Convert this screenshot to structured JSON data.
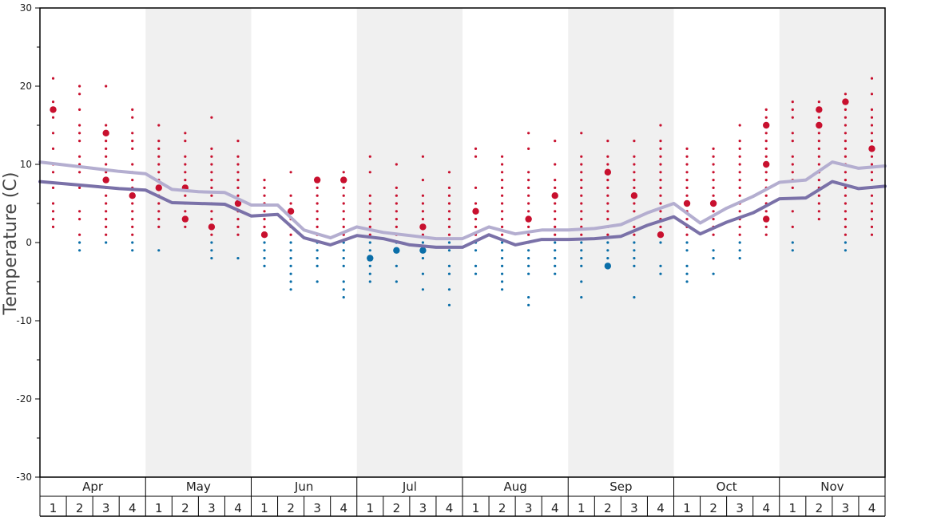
{
  "chart_data": {
    "type": "scatter",
    "title": "",
    "ylabel": "Temperature (C)",
    "xlabel": "",
    "ylim": [
      -30,
      30
    ],
    "y_ticks": [
      30,
      20,
      10,
      0,
      -10,
      -20,
      -30
    ],
    "months": [
      "Apr",
      "May",
      "Jun",
      "Jul",
      "Aug",
      "Sep",
      "Oct",
      "Nov"
    ],
    "week_labels": [
      "1",
      "2",
      "3",
      "4"
    ],
    "shaded_months": [
      "May",
      "Jul",
      "Sep",
      "Nov"
    ],
    "colors": {
      "warm_dot": "#c8102e",
      "cold_dot": "#0a6ea8",
      "mean_line_upper": "#b4aed0",
      "mean_line_lower": "#7a71a8",
      "month_shade": "#f0f0f0"
    },
    "series": [
      {
        "values": [
          10.3,
          9.9,
          9.5,
          9.1,
          8.8,
          6.8,
          6.5,
          6.4,
          4.8,
          4.8,
          1.6,
          0.6,
          2.0,
          1.3,
          0.9,
          0.5,
          0.5,
          2.0,
          1.1,
          1.6,
          1.6,
          1.8,
          2.3,
          3.8,
          5.0,
          2.5,
          4.4,
          5.9,
          7.7,
          8.0,
          10.3,
          9.5,
          9.8
        ]
      },
      {
        "values": [
          7.8,
          7.5,
          7.2,
          6.9,
          6.7,
          5.1,
          5.0,
          4.9,
          3.4,
          3.6,
          0.6,
          -0.3,
          0.9,
          0.5,
          -0.3,
          -0.6,
          -0.6,
          1.0,
          -0.3,
          0.4,
          0.4,
          0.5,
          0.8,
          2.2,
          3.3,
          1.1,
          2.6,
          3.8,
          5.6,
          5.7,
          7.8,
          6.9,
          7.2
        ]
      }
    ],
    "points": [
      {
        "week": 0,
        "temps": [
          21,
          18,
          17,
          16,
          14,
          12,
          10,
          9,
          7,
          5,
          4,
          3,
          2
        ],
        "big": [
          17
        ]
      },
      {
        "week": 1,
        "temps": [
          20,
          19,
          17,
          15,
          14,
          13,
          11,
          10,
          9,
          7,
          4,
          3,
          1,
          0,
          -1
        ],
        "big": []
      },
      {
        "week": 2,
        "temps": [
          20,
          15,
          14,
          13,
          12,
          11,
          10,
          9,
          8,
          7,
          6,
          5,
          4,
          3,
          2,
          1,
          0
        ],
        "big": [
          14,
          8
        ]
      },
      {
        "week": 3,
        "temps": [
          17,
          16,
          14,
          13,
          12,
          10,
          9,
          8,
          7,
          6,
          5,
          4,
          3,
          2,
          1,
          0,
          -1
        ],
        "big": [
          6
        ]
      },
      {
        "week": 4,
        "temps": [
          15,
          13,
          12,
          11,
          10,
          9,
          8,
          7,
          6,
          5,
          4,
          3,
          2,
          -1
        ],
        "big": [
          7
        ]
      },
      {
        "week": 5,
        "temps": [
          14,
          13,
          11,
          10,
          9,
          8,
          7,
          6,
          5,
          4,
          3,
          2
        ],
        "big": [
          7,
          3
        ]
      },
      {
        "week": 6,
        "temps": [
          16,
          12,
          11,
          10,
          9,
          8,
          7,
          6,
          5,
          4,
          3,
          2,
          1,
          0,
          -1,
          -2
        ],
        "big": [
          2
        ]
      },
      {
        "week": 7,
        "temps": [
          13,
          11,
          10,
          9,
          8,
          7,
          6,
          5,
          4,
          3,
          2,
          1,
          -2
        ],
        "big": [
          5
        ]
      },
      {
        "week": 8,
        "temps": [
          8,
          7,
          6,
          5,
          4,
          3,
          2,
          1,
          0,
          -1,
          -2,
          -3
        ],
        "big": [
          1
        ]
      },
      {
        "week": 9,
        "temps": [
          9,
          6,
          5,
          4,
          3,
          2,
          1,
          0,
          -1,
          -2,
          -3,
          -4,
          -5,
          -6
        ],
        "big": [
          4
        ]
      },
      {
        "week": 10,
        "temps": [
          8,
          7,
          6,
          5,
          4,
          3,
          2,
          1,
          0,
          -1,
          -2,
          -3,
          -5
        ],
        "big": [
          8
        ]
      },
      {
        "week": 11,
        "temps": [
          9,
          8,
          7,
          6,
          5,
          4,
          3,
          2,
          1,
          0,
          -1,
          -2,
          -3,
          -5,
          -6,
          -7
        ],
        "big": [
          8
        ]
      },
      {
        "week": 12,
        "temps": [
          11,
          9,
          6,
          5,
          4,
          3,
          2,
          1,
          0,
          -1,
          -2,
          -3,
          -4,
          -5
        ],
        "big": [
          -2
        ]
      },
      {
        "week": 13,
        "temps": [
          10,
          7,
          6,
          5,
          4,
          3,
          2,
          1,
          0,
          -1,
          -3,
          -5
        ],
        "big": [
          -1
        ]
      },
      {
        "week": 14,
        "temps": [
          11,
          8,
          6,
          5,
          4,
          3,
          2,
          1,
          0,
          -1,
          -2,
          -4,
          -6
        ],
        "big": [
          2,
          -1
        ]
      },
      {
        "week": 15,
        "temps": [
          9,
          7,
          6,
          5,
          4,
          3,
          2,
          1,
          0,
          -1,
          -3,
          -4,
          -6,
          -8
        ],
        "big": []
      },
      {
        "week": 16,
        "temps": [
          12,
          11,
          7,
          5,
          4,
          3,
          2,
          1,
          0,
          -1,
          -3,
          -4
        ],
        "big": [
          4
        ]
      },
      {
        "week": 17,
        "temps": [
          11,
          10,
          9,
          8,
          7,
          6,
          5,
          4,
          3,
          2,
          1,
          0,
          -1,
          -2,
          -3,
          -4,
          -5,
          -6
        ],
        "big": []
      },
      {
        "week": 18,
        "temps": [
          14,
          12,
          9,
          8,
          7,
          6,
          5,
          4,
          3,
          2,
          1,
          0,
          -1,
          -2,
          -3,
          -4,
          -7,
          -8
        ],
        "big": [
          3
        ]
      },
      {
        "week": 19,
        "temps": [
          13,
          10,
          8,
          7,
          6,
          5,
          4,
          3,
          2,
          1,
          0,
          -1,
          -2,
          -3,
          -4
        ],
        "big": [
          6
        ]
      },
      {
        "week": 20,
        "temps": [
          14,
          11,
          10,
          9,
          8,
          7,
          6,
          5,
          4,
          3,
          2,
          1,
          0,
          -1,
          -2,
          -3,
          -5,
          -7
        ],
        "big": []
      },
      {
        "week": 21,
        "temps": [
          13,
          11,
          10,
          9,
          8,
          7,
          6,
          5,
          4,
          3,
          2,
          1,
          0,
          -1,
          -2,
          -3
        ],
        "big": [
          9,
          -3
        ]
      },
      {
        "week": 22,
        "temps": [
          13,
          11,
          10,
          9,
          8,
          7,
          6,
          5,
          4,
          3,
          2,
          1,
          0,
          -1,
          -2,
          -3,
          -7
        ],
        "big": [
          6
        ]
      },
      {
        "week": 23,
        "temps": [
          15,
          13,
          12,
          11,
          10,
          9,
          8,
          7,
          6,
          5,
          4,
          3,
          2,
          1,
          0,
          -3,
          -4
        ],
        "big": [
          1
        ]
      },
      {
        "week": 24,
        "temps": [
          12,
          11,
          10,
          9,
          8,
          7,
          6,
          5,
          4,
          3,
          2,
          1,
          0,
          -1,
          -3,
          -4,
          -5
        ],
        "big": [
          5
        ]
      },
      {
        "week": 25,
        "temps": [
          12,
          11,
          10,
          9,
          8,
          7,
          6,
          5,
          4,
          3,
          2,
          1,
          -1,
          -2,
          -4
        ],
        "big": [
          5
        ]
      },
      {
        "week": 26,
        "temps": [
          15,
          13,
          12,
          11,
          10,
          9,
          8,
          7,
          6,
          5,
          4,
          3,
          2,
          1,
          0,
          -1,
          -2
        ],
        "big": []
      },
      {
        "week": 27,
        "temps": [
          17,
          16,
          15,
          14,
          13,
          12,
          11,
          10,
          9,
          8,
          7,
          6,
          5,
          4,
          3,
          2,
          1
        ],
        "big": [
          15,
          10,
          3
        ]
      },
      {
        "week": 28,
        "temps": [
          18,
          17,
          16,
          14,
          13,
          11,
          10,
          9,
          8,
          7,
          4,
          2,
          0,
          -1
        ],
        "big": []
      },
      {
        "week": 29,
        "temps": [
          18,
          17,
          16,
          15,
          14,
          13,
          12,
          11,
          10,
          9,
          8,
          7,
          6,
          5,
          4,
          3
        ],
        "big": [
          17,
          15
        ]
      },
      {
        "week": 30,
        "temps": [
          19,
          18,
          17,
          16,
          15,
          14,
          13,
          12,
          11,
          10,
          9,
          8,
          7,
          6,
          5,
          4,
          3,
          2,
          1,
          0,
          -1
        ],
        "big": [
          18
        ]
      },
      {
        "week": 31,
        "temps": [
          21,
          19,
          17,
          16,
          15,
          14,
          13,
          12,
          11,
          10,
          9,
          8,
          7,
          6,
          5,
          4,
          3,
          2,
          1
        ],
        "big": [
          12
        ]
      }
    ]
  }
}
